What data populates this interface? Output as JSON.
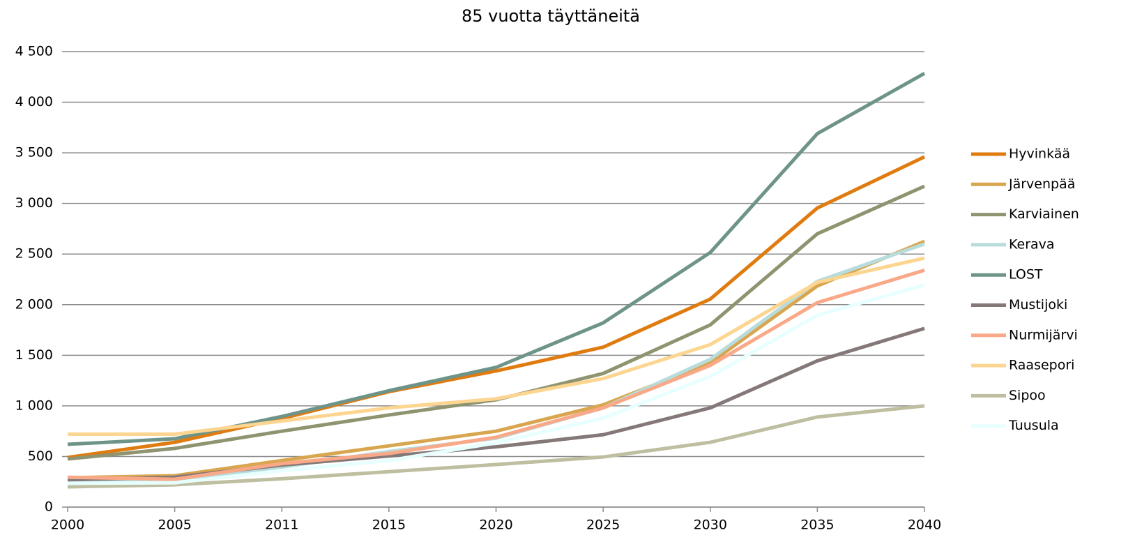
{
  "chart_data": {
    "type": "line",
    "title": "85 vuotta täyttäneitä",
    "categories": [
      "2000",
      "2005",
      "2011",
      "2015",
      "2020",
      "2025",
      "2030",
      "2035",
      "2040"
    ],
    "ylim": [
      0,
      4500
    ],
    "yticks": [
      0,
      500,
      {
        "value": 1000,
        "label": "1 000"
      },
      {
        "value": 1500,
        "label": "1 500"
      },
      {
        "value": 2000,
        "label": "2 000"
      },
      {
        "value": 2500,
        "label": "2 500"
      },
      {
        "value": 3000,
        "label": "3 000"
      },
      {
        "value": 3500,
        "label": "3 500"
      },
      {
        "value": 4000,
        "label": "4 000"
      },
      {
        "value": 4500,
        "label": "4 500"
      }
    ],
    "grid": true,
    "legend": "right",
    "series": [
      {
        "name": "Hyvinkää",
        "color": "#e07b10",
        "values": [
          490,
          640,
          875,
          1140,
          1345,
          1580,
          2055,
          2955,
          3460
        ]
      },
      {
        "name": "Järvenpää",
        "color": "#d9a650",
        "values": [
          290,
          310,
          460,
          605,
          750,
          1010,
          1425,
          2185,
          2625
        ]
      },
      {
        "name": "Karviainen",
        "color": "#8f9470",
        "values": [
          475,
          580,
          750,
          910,
          1060,
          1320,
          1800,
          2700,
          3170
        ]
      },
      {
        "name": "Kerava",
        "color": "#b8dcdc",
        "values": [
          255,
          270,
          395,
          550,
          680,
          980,
          1460,
          2230,
          2600
        ]
      },
      {
        "name": "LOST",
        "color": "#6e948a",
        "values": [
          620,
          675,
          895,
          1150,
          1380,
          1820,
          2515,
          3690,
          4285
        ]
      },
      {
        "name": "Mustijoki",
        "color": "#857878",
        "values": [
          270,
          295,
          415,
          505,
          595,
          715,
          980,
          1445,
          1765
        ]
      },
      {
        "name": "Nurmijärvi",
        "color": "#f9a888",
        "values": [
          295,
          275,
          430,
          530,
          690,
          980,
          1400,
          2020,
          2340
        ]
      },
      {
        "name": "Raasepori",
        "color": "#fcd590",
        "values": [
          720,
          720,
          850,
          980,
          1070,
          1270,
          1605,
          2220,
          2460
        ]
      },
      {
        "name": "Sipoo",
        "color": "#bebea0",
        "values": [
          200,
          220,
          280,
          350,
          420,
          495,
          640,
          890,
          1000
        ]
      },
      {
        "name": "Tuusula",
        "color": "#e8ffff",
        "values": [
          235,
          240,
          360,
          460,
          635,
          880,
          1290,
          1895,
          2195
        ]
      }
    ]
  }
}
